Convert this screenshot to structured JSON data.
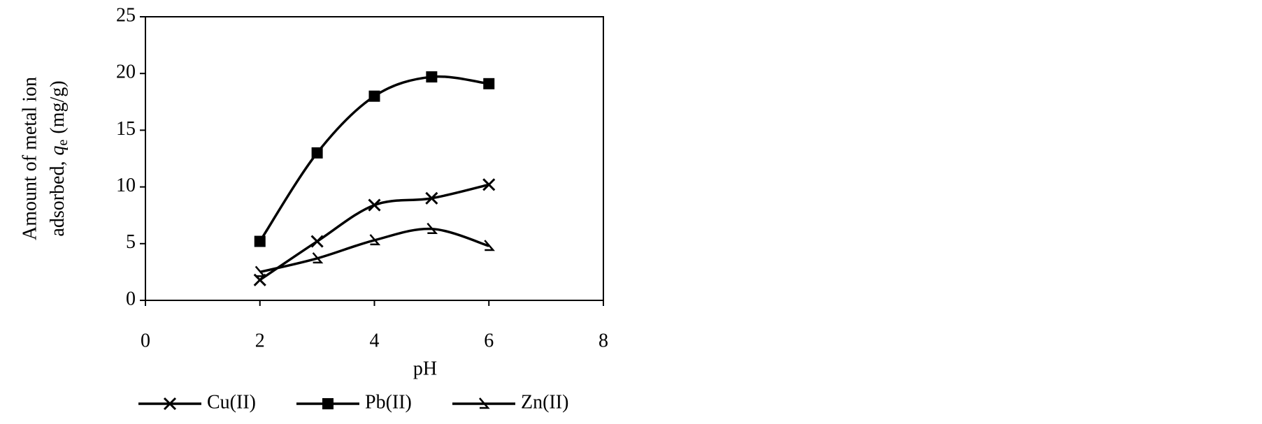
{
  "chart_data": {
    "type": "line",
    "x_label": "pH",
    "y_label": {
      "line1": "Amount of metal ion",
      "line2_prefix": "adsorbed,",
      "symbol": "q",
      "subscript": "e",
      "unit": "(mg/g)"
    },
    "x": [
      2,
      3,
      4,
      5,
      6
    ],
    "series": [
      {
        "name": "Cu(II)",
        "color": "#000000",
        "marker": "x",
        "values": [
          1.8,
          5.2,
          8.4,
          9.0,
          10.2
        ]
      },
      {
        "name": "Pb(II)",
        "color": "#000000",
        "marker": "square",
        "values": [
          5.2,
          13.0,
          18.0,
          19.7,
          19.1
        ]
      },
      {
        "name": "Zn(II)",
        "color": "#000000",
        "marker": "triangle",
        "values": [
          2.5,
          3.7,
          5.3,
          6.3,
          4.8
        ]
      }
    ],
    "xlim": [
      0,
      8
    ],
    "xticks": [
      0,
      2,
      4,
      6,
      8
    ],
    "ylim": [
      0,
      25
    ],
    "yticks": [
      0,
      5,
      10,
      15,
      20,
      25
    ],
    "legend": "bottom",
    "grid": false
  }
}
